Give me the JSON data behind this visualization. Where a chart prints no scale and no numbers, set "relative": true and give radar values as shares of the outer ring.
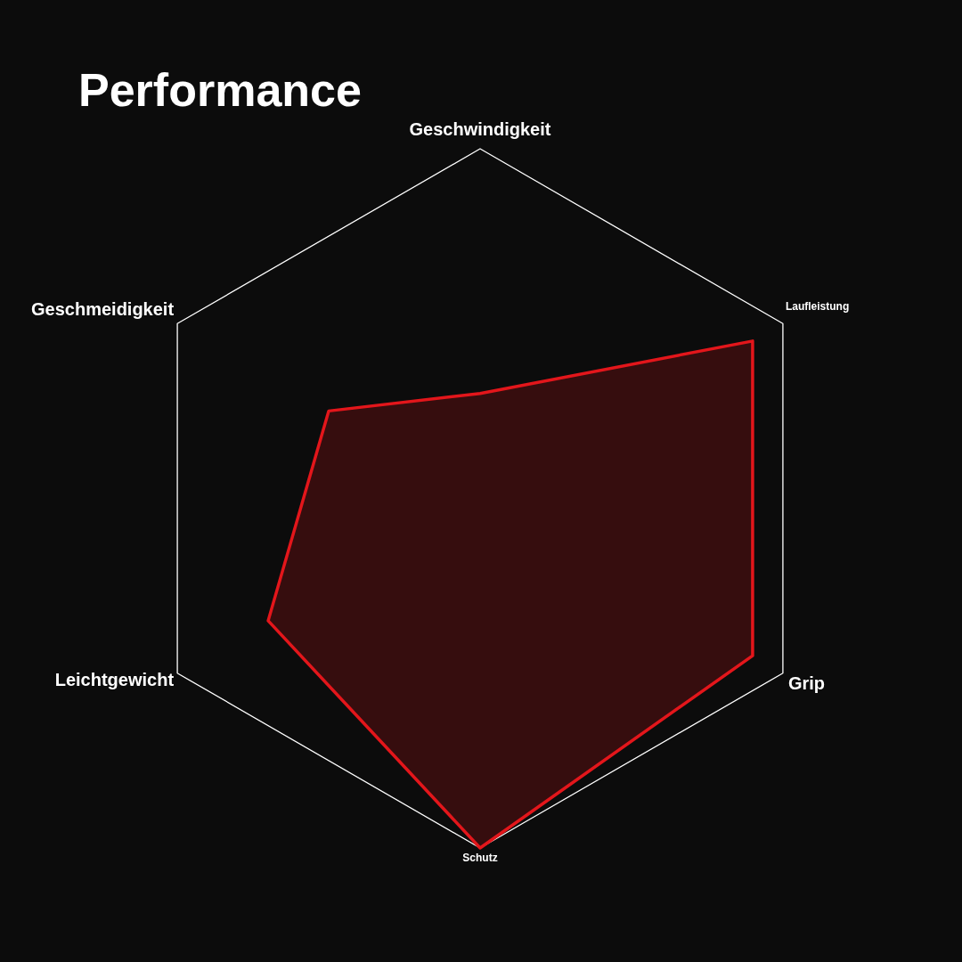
{
  "chart_data": {
    "type": "radar",
    "title": "Performance",
    "categories": [
      "Geschwindigkeit",
      "Laufleistung",
      "Grip",
      "Schutz",
      "Leichtgewicht",
      "Geschmeidigkeit"
    ],
    "series": [
      {
        "color": "#e3161b",
        "values": [
          0.3,
          0.9,
          0.9,
          1.0,
          0.7,
          0.5
        ]
      }
    ],
    "relative": true,
    "grid": true
  }
}
